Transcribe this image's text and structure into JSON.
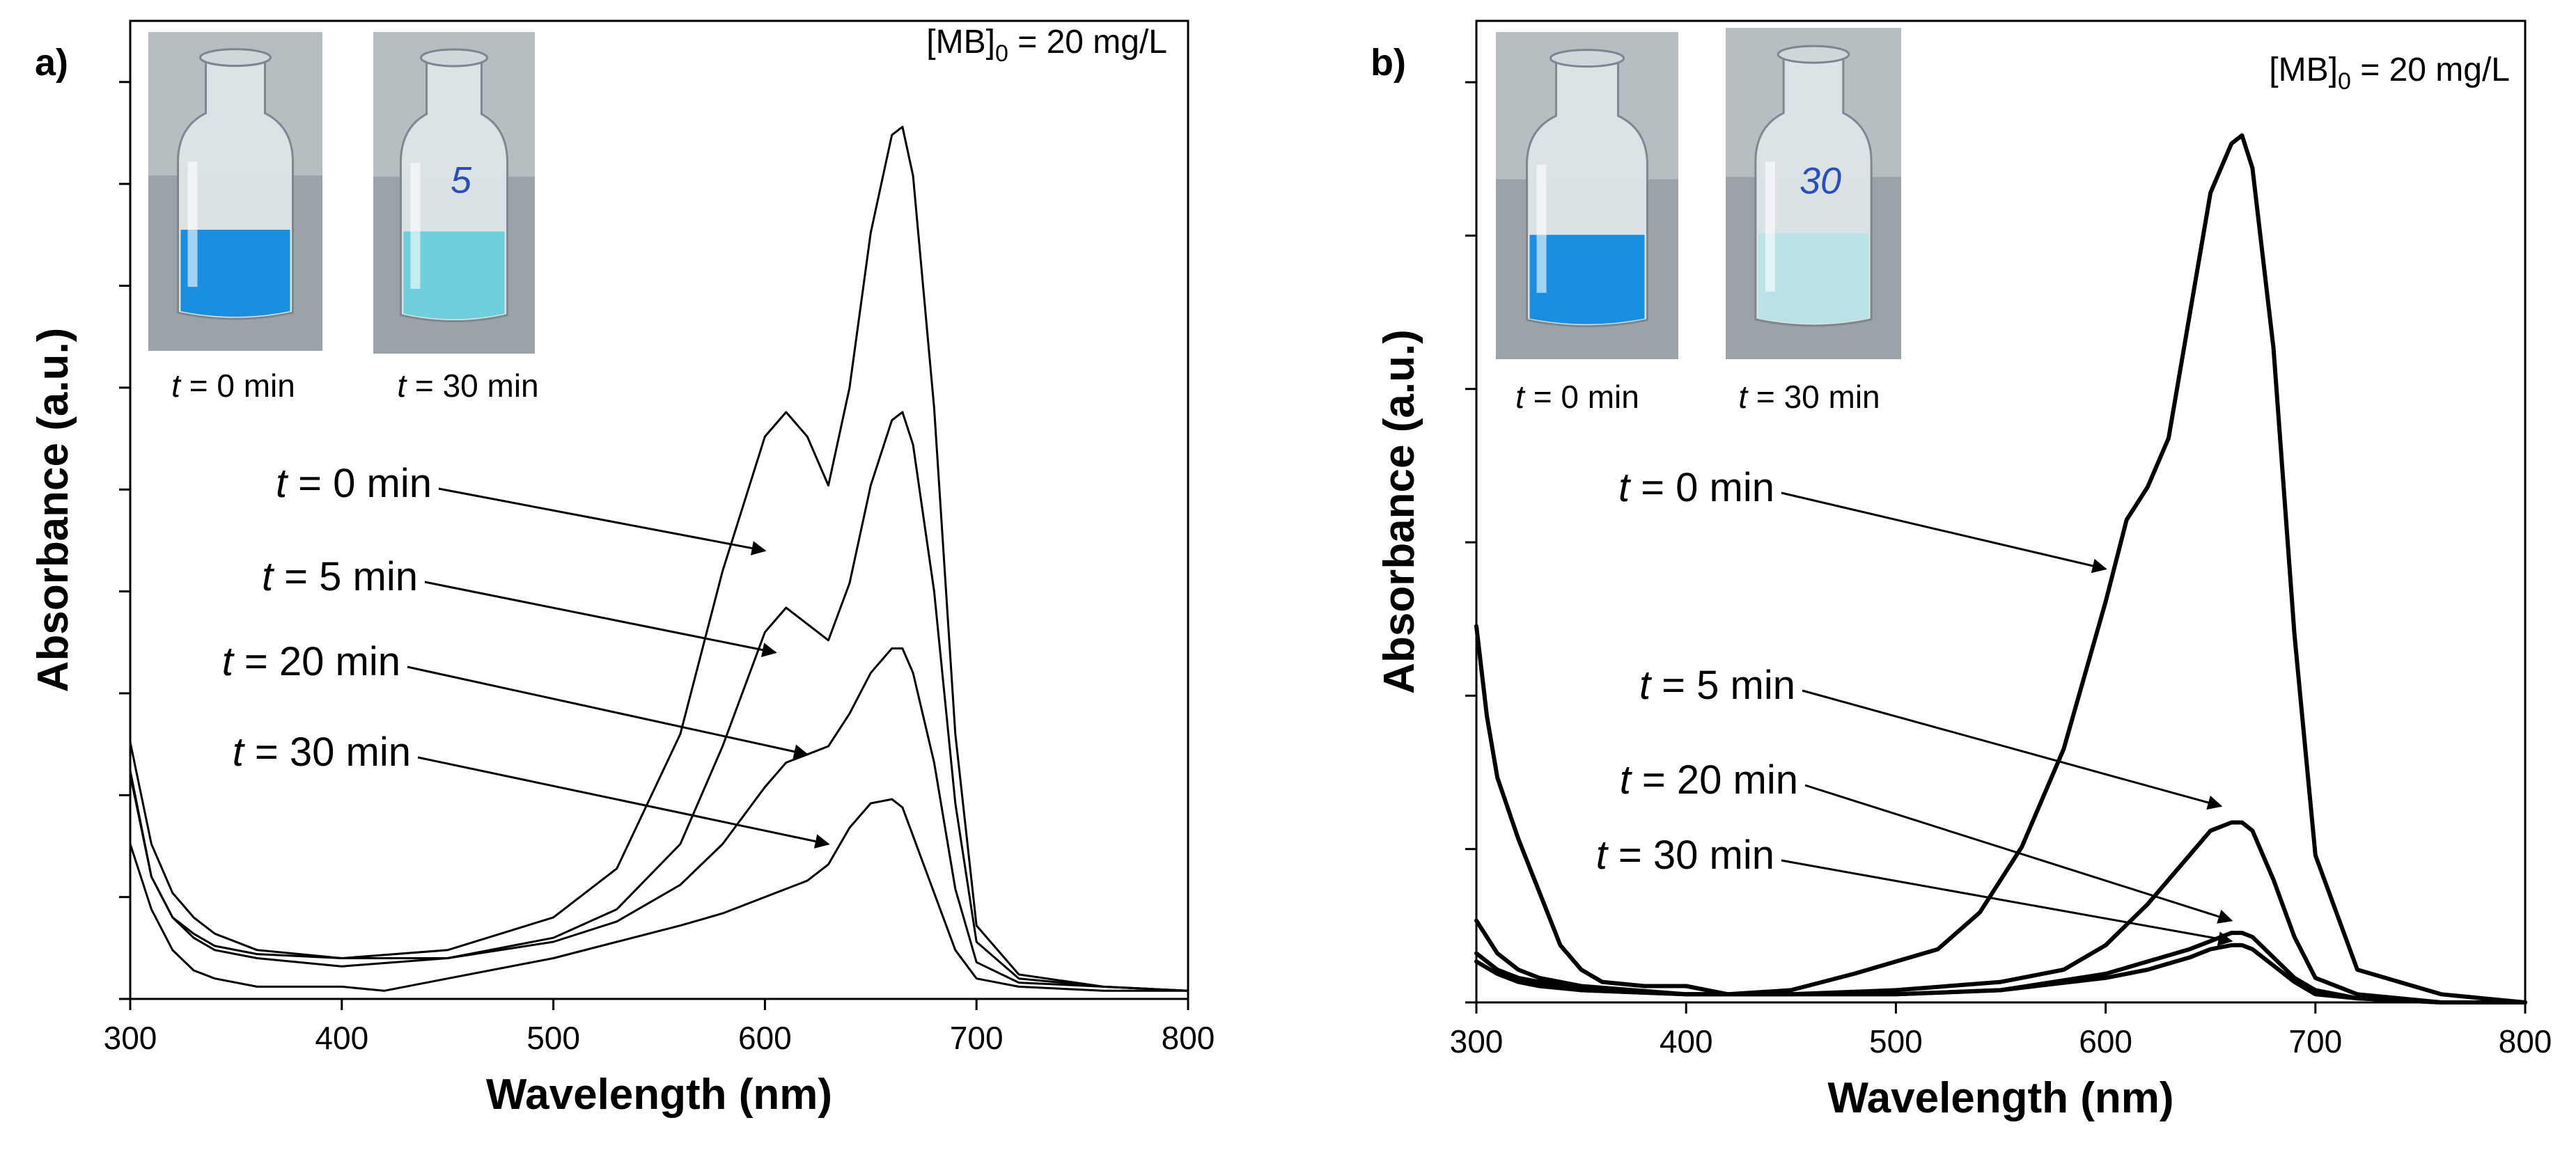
{
  "colors": {
    "background": "#ffffff",
    "line": "#000000",
    "dye_blue": "#1a8fe0",
    "dye_faded_a": "#6fd0dc",
    "dye_faded_b": "#b9e3e6"
  },
  "chart_data": [
    {
      "type": "line",
      "panel_label": "a)",
      "xlabel": "Wavelength (nm)",
      "ylabel": "Absorbance (a.u.)",
      "xlim": [
        300,
        800
      ],
      "ylim": [
        0,
        2.4
      ],
      "x_ticks": [
        "300",
        "400",
        "500",
        "600",
        "700",
        "800"
      ],
      "y_tick_values": [
        0,
        0.25,
        0.5,
        0.75,
        1.0,
        1.25,
        1.5,
        1.75,
        2.0,
        2.25
      ],
      "y_tick_labels_shown": false,
      "concentration_label": {
        "prefix": "[MB]",
        "subscript": "0",
        "suffix": " = 20 mg/L"
      },
      "inset_photos": [
        {
          "caption_italic": "t",
          "caption_rest": " = 0 min",
          "liquid": "dye_blue",
          "marking": ""
        },
        {
          "caption_italic": "t",
          "caption_rest": " = 30 min",
          "liquid": "dye_faded_a",
          "marking": "5"
        }
      ],
      "series": [
        {
          "name": "t = 0 min",
          "x": [
            300,
            310,
            320,
            330,
            340,
            360,
            400,
            450,
            500,
            530,
            560,
            580,
            600,
            610,
            620,
            630,
            640,
            650,
            660,
            665,
            670,
            680,
            690,
            700,
            720,
            760,
            800
          ],
          "y": [
            0.63,
            0.38,
            0.26,
            0.2,
            0.16,
            0.12,
            0.1,
            0.12,
            0.2,
            0.32,
            0.65,
            1.05,
            1.38,
            1.44,
            1.38,
            1.26,
            1.5,
            1.88,
            2.12,
            2.14,
            2.02,
            1.45,
            0.65,
            0.18,
            0.06,
            0.03,
            0.02
          ]
        },
        {
          "name": "t = 5 min",
          "x": [
            300,
            310,
            320,
            330,
            340,
            360,
            400,
            450,
            500,
            530,
            560,
            580,
            600,
            610,
            620,
            630,
            640,
            650,
            660,
            665,
            670,
            680,
            690,
            700,
            720,
            760,
            800
          ],
          "y": [
            0.55,
            0.3,
            0.2,
            0.15,
            0.12,
            0.1,
            0.08,
            0.1,
            0.15,
            0.22,
            0.38,
            0.62,
            0.9,
            0.96,
            0.92,
            0.88,
            1.02,
            1.26,
            1.42,
            1.44,
            1.36,
            1.0,
            0.48,
            0.14,
            0.05,
            0.03,
            0.02
          ]
        },
        {
          "name": "t = 20 min",
          "x": [
            300,
            310,
            320,
            330,
            340,
            360,
            400,
            450,
            500,
            530,
            560,
            580,
            600,
            610,
            620,
            630,
            640,
            650,
            660,
            665,
            670,
            680,
            690,
            700,
            720,
            760,
            800
          ],
          "y": [
            0.56,
            0.3,
            0.2,
            0.16,
            0.13,
            0.11,
            0.1,
            0.1,
            0.14,
            0.19,
            0.28,
            0.38,
            0.52,
            0.58,
            0.6,
            0.62,
            0.7,
            0.8,
            0.86,
            0.86,
            0.8,
            0.58,
            0.27,
            0.09,
            0.04,
            0.03,
            0.02
          ]
        },
        {
          "name": "t = 30 min",
          "x": [
            300,
            310,
            320,
            330,
            340,
            360,
            400,
            420,
            450,
            500,
            530,
            560,
            580,
            600,
            610,
            620,
            630,
            640,
            650,
            660,
            665,
            670,
            680,
            690,
            700,
            720,
            760,
            800
          ],
          "y": [
            0.38,
            0.22,
            0.12,
            0.07,
            0.05,
            0.03,
            0.03,
            0.02,
            0.05,
            0.1,
            0.14,
            0.18,
            0.21,
            0.25,
            0.27,
            0.29,
            0.33,
            0.42,
            0.48,
            0.49,
            0.47,
            0.4,
            0.26,
            0.12,
            0.05,
            0.03,
            0.02,
            0.02
          ]
        }
      ],
      "annotations": [
        {
          "italic": "t",
          "text": " = 0 min",
          "points_to": [
            600,
            1.1
          ]
        },
        {
          "italic": "t",
          "text": " = 5 min",
          "points_to": [
            605,
            0.85
          ]
        },
        {
          "italic": "t",
          "text": " = 20 min",
          "points_to": [
            620,
            0.6
          ]
        },
        {
          "italic": "t",
          "text": " = 30 min",
          "points_to": [
            630,
            0.38
          ]
        }
      ]
    },
    {
      "type": "line",
      "panel_label": "b)",
      "xlabel": "Wavelength (nm)",
      "ylabel": "Absorbance (a.u.)",
      "xlim": [
        300,
        800
      ],
      "ylim": [
        0,
        2.4
      ],
      "x_ticks": [
        "300",
        "400",
        "500",
        "600",
        "700",
        "800"
      ],
      "y_tick_values": [
        0,
        0.375,
        0.75,
        1.125,
        1.5,
        1.875,
        2.25
      ],
      "y_tick_labels_shown": false,
      "concentration_label": {
        "prefix": "[MB]",
        "subscript": "0",
        "suffix": " = 20 mg/L"
      },
      "inset_photos": [
        {
          "caption_italic": "t",
          "caption_rest": " = 0 min",
          "liquid": "dye_blue",
          "marking": ""
        },
        {
          "caption_italic": "t",
          "caption_rest": " = 30 min",
          "liquid": "dye_faded_b",
          "marking": "30"
        }
      ],
      "series": [
        {
          "name": "t = 0 min",
          "x": [
            300,
            305,
            310,
            320,
            330,
            340,
            350,
            360,
            380,
            400,
            420,
            450,
            480,
            500,
            520,
            540,
            560,
            580,
            600,
            610,
            620,
            630,
            640,
            650,
            660,
            665,
            670,
            680,
            690,
            700,
            720,
            760,
            800
          ],
          "y": [
            0.92,
            0.7,
            0.55,
            0.4,
            0.27,
            0.14,
            0.08,
            0.05,
            0.04,
            0.04,
            0.02,
            0.03,
            0.07,
            0.1,
            0.13,
            0.22,
            0.38,
            0.62,
            0.98,
            1.18,
            1.26,
            1.38,
            1.68,
            1.98,
            2.1,
            2.12,
            2.04,
            1.6,
            0.9,
            0.36,
            0.08,
            0.02,
            0.0
          ]
        },
        {
          "name": "t = 5 min",
          "x": [
            300,
            310,
            320,
            330,
            350,
            400,
            450,
            500,
            550,
            580,
            600,
            620,
            640,
            650,
            660,
            665,
            670,
            680,
            690,
            700,
            720,
            760,
            800
          ],
          "y": [
            0.2,
            0.12,
            0.08,
            0.06,
            0.04,
            0.02,
            0.02,
            0.03,
            0.05,
            0.08,
            0.14,
            0.24,
            0.36,
            0.42,
            0.44,
            0.44,
            0.42,
            0.3,
            0.16,
            0.06,
            0.02,
            0.0,
            0.0
          ]
        },
        {
          "name": "t = 20 min",
          "x": [
            300,
            310,
            320,
            330,
            350,
            400,
            450,
            500,
            550,
            600,
            620,
            640,
            650,
            660,
            665,
            670,
            680,
            690,
            700,
            720,
            760,
            800
          ],
          "y": [
            0.12,
            0.08,
            0.06,
            0.05,
            0.03,
            0.02,
            0.02,
            0.02,
            0.03,
            0.07,
            0.1,
            0.13,
            0.15,
            0.17,
            0.17,
            0.16,
            0.11,
            0.06,
            0.03,
            0.01,
            0.0,
            0.0
          ]
        },
        {
          "name": "t = 30 min",
          "x": [
            300,
            310,
            320,
            330,
            350,
            400,
            450,
            500,
            550,
            600,
            620,
            640,
            650,
            660,
            665,
            670,
            680,
            690,
            700,
            720,
            760,
            800
          ],
          "y": [
            0.1,
            0.07,
            0.05,
            0.04,
            0.03,
            0.02,
            0.02,
            0.02,
            0.03,
            0.06,
            0.08,
            0.11,
            0.13,
            0.14,
            0.14,
            0.13,
            0.09,
            0.05,
            0.02,
            0.01,
            0.0,
            0.0
          ]
        }
      ],
      "annotations": [
        {
          "italic": "t",
          "text": " = 0 min",
          "points_to": [
            600,
            1.06
          ]
        },
        {
          "italic": "t",
          "text": " = 5 min",
          "points_to": [
            655,
            0.48
          ]
        },
        {
          "italic": "t",
          "text": " = 20 min",
          "points_to": [
            660,
            0.2
          ]
        },
        {
          "italic": "t",
          "text": " = 30 min",
          "points_to": [
            660,
            0.15
          ]
        }
      ]
    }
  ]
}
